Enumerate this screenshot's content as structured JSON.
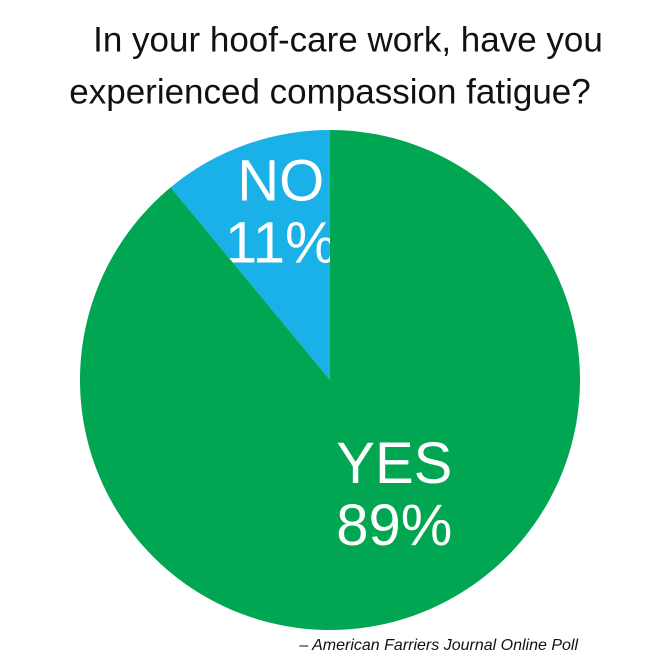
{
  "chart_data": {
    "type": "pie",
    "title": [
      "In your hoof-care work, have you",
      "experienced compassion fatigue?"
    ],
    "categories": [
      "NO",
      "YES"
    ],
    "values": [
      11,
      89
    ],
    "value_labels": [
      "11%",
      "89%"
    ],
    "colors": [
      "#1ab0e8",
      "#00a651"
    ],
    "source": "– American Farriers Journal Online Poll"
  }
}
